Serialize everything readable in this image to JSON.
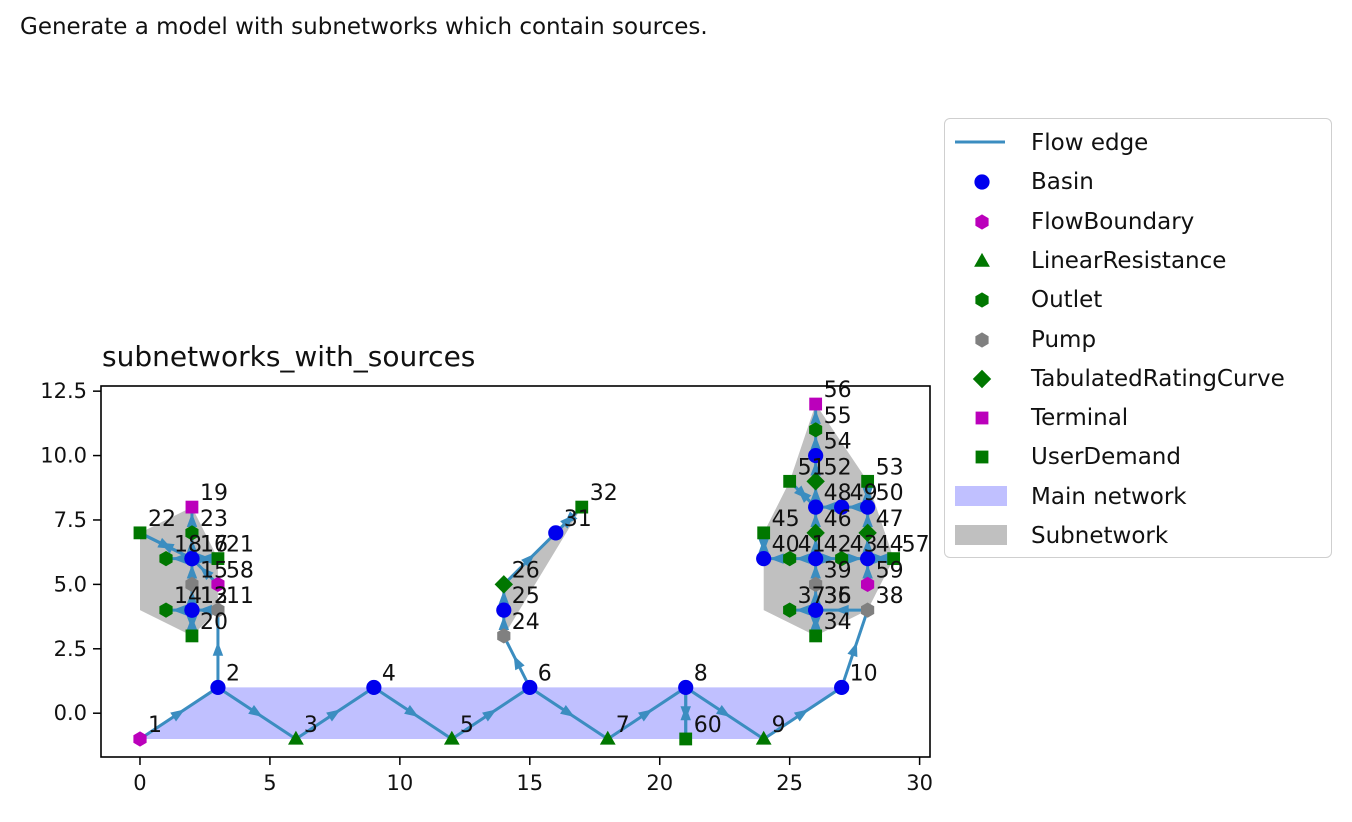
{
  "caption": "Generate a model with subnetworks which contain sources.",
  "chart_data": {
    "type": "scatter",
    "title": "subnetworks_with_sources",
    "xlabel": "",
    "ylabel": "",
    "xlim": [
      -1.5,
      30.4
    ],
    "ylim": [
      -1.7,
      12.7
    ],
    "xticks": [
      0,
      5,
      10,
      15,
      20,
      25,
      30
    ],
    "yticks": [
      0.0,
      2.5,
      5.0,
      7.5,
      10.0,
      12.5
    ],
    "ytick_labels": [
      "0.0",
      "2.5",
      "5.0",
      "7.5",
      "10.0",
      "12.5"
    ],
    "grid": false,
    "legend_position": "outside-right",
    "colors": {
      "flow_edge": "#3b8dc0",
      "Basin": "#0000ee",
      "FlowBoundary": "#bb00bb",
      "LinearResistance": "#007700",
      "Outlet": "#007700",
      "Pump": "#808080",
      "TabulatedRatingCurve": "#007700",
      "Terminal": "#bb00bb",
      "UserDemand": "#007700",
      "main_network": "#c0c0ff",
      "subnetwork": "#c0c0c0"
    },
    "legend": [
      {
        "label": "Flow edge",
        "kind": "line"
      },
      {
        "label": "Basin",
        "kind": "Basin"
      },
      {
        "label": "FlowBoundary",
        "kind": "FlowBoundary"
      },
      {
        "label": "LinearResistance",
        "kind": "LinearResistance"
      },
      {
        "label": "Outlet",
        "kind": "Outlet"
      },
      {
        "label": "Pump",
        "kind": "Pump"
      },
      {
        "label": "TabulatedRatingCurve",
        "kind": "TabulatedRatingCurve"
      },
      {
        "label": "Terminal",
        "kind": "Terminal"
      },
      {
        "label": "UserDemand",
        "kind": "UserDemand"
      },
      {
        "label": "Main network",
        "kind": "main_network"
      },
      {
        "label": "Subnetwork",
        "kind": "subnetwork"
      }
    ],
    "nodes": [
      {
        "id": "1",
        "x": 0,
        "y": -1,
        "type": "FlowBoundary"
      },
      {
        "id": "2",
        "x": 3,
        "y": 1,
        "type": "Basin"
      },
      {
        "id": "3",
        "x": 6,
        "y": -1,
        "type": "LinearResistance"
      },
      {
        "id": "4",
        "x": 9,
        "y": 1,
        "type": "Basin"
      },
      {
        "id": "5",
        "x": 12,
        "y": -1,
        "type": "LinearResistance"
      },
      {
        "id": "6",
        "x": 15,
        "y": 1,
        "type": "Basin"
      },
      {
        "id": "7",
        "x": 18,
        "y": -1,
        "type": "LinearResistance"
      },
      {
        "id": "8",
        "x": 21,
        "y": 1,
        "type": "Basin"
      },
      {
        "id": "9",
        "x": 24,
        "y": -1,
        "type": "LinearResistance"
      },
      {
        "id": "10",
        "x": 27,
        "y": 1,
        "type": "Basin"
      },
      {
        "id": "11",
        "x": 3,
        "y": 4,
        "type": "Pump"
      },
      {
        "id": "12",
        "x": 2,
        "y": 4,
        "type": "Basin"
      },
      {
        "id": "13",
        "x": 2,
        "y": 4,
        "type": "Basin"
      },
      {
        "id": "14",
        "x": 1,
        "y": 4,
        "type": "Outlet"
      },
      {
        "id": "15",
        "x": 2,
        "y": 5,
        "type": "Pump"
      },
      {
        "id": "16",
        "x": 2,
        "y": 6,
        "type": "Basin"
      },
      {
        "id": "17",
        "x": 2,
        "y": 6,
        "type": "Basin"
      },
      {
        "id": "18",
        "x": 1,
        "y": 6,
        "type": "Outlet"
      },
      {
        "id": "19",
        "x": 2,
        "y": 8,
        "type": "Terminal"
      },
      {
        "id": "20",
        "x": 2,
        "y": 3,
        "type": "UserDemand"
      },
      {
        "id": "21",
        "x": 3,
        "y": 6,
        "type": "UserDemand"
      },
      {
        "id": "22",
        "x": 0,
        "y": 7,
        "type": "UserDemand"
      },
      {
        "id": "23",
        "x": 2,
        "y": 7,
        "type": "Outlet"
      },
      {
        "id": "24",
        "x": 14,
        "y": 3,
        "type": "Pump"
      },
      {
        "id": "25",
        "x": 14,
        "y": 4,
        "type": "Basin"
      },
      {
        "id": "26",
        "x": 14,
        "y": 5,
        "type": "TabulatedRatingCurve"
      },
      {
        "id": "31",
        "x": 16,
        "y": 7,
        "type": "Basin"
      },
      {
        "id": "32",
        "x": 17,
        "y": 8,
        "type": "UserDemand"
      },
      {
        "id": "34",
        "x": 26,
        "y": 3,
        "type": "UserDemand"
      },
      {
        "id": "35",
        "x": 26,
        "y": 4,
        "type": "Basin"
      },
      {
        "id": "36",
        "x": 26,
        "y": 4,
        "type": "Basin"
      },
      {
        "id": "37",
        "x": 25,
        "y": 4,
        "type": "Outlet"
      },
      {
        "id": "38",
        "x": 28,
        "y": 4,
        "type": "Pump"
      },
      {
        "id": "39",
        "x": 26,
        "y": 5,
        "type": "Pump"
      },
      {
        "id": "40",
        "x": 24,
        "y": 6,
        "type": "Basin"
      },
      {
        "id": "41",
        "x": 25,
        "y": 6,
        "type": "Outlet"
      },
      {
        "id": "42",
        "x": 26,
        "y": 6,
        "type": "Basin"
      },
      {
        "id": "43",
        "x": 27,
        "y": 6,
        "type": "Outlet"
      },
      {
        "id": "44",
        "x": 28,
        "y": 6,
        "type": "Basin"
      },
      {
        "id": "45",
        "x": 24,
        "y": 7,
        "type": "UserDemand"
      },
      {
        "id": "46",
        "x": 26,
        "y": 7,
        "type": "TabulatedRatingCurve"
      },
      {
        "id": "47",
        "x": 28,
        "y": 7,
        "type": "TabulatedRatingCurve"
      },
      {
        "id": "48",
        "x": 26,
        "y": 8,
        "type": "Basin"
      },
      {
        "id": "49",
        "x": 27,
        "y": 8,
        "type": "Basin"
      },
      {
        "id": "50",
        "x": 28,
        "y": 8,
        "type": "Basin"
      },
      {
        "id": "51",
        "x": 25,
        "y": 9,
        "type": "UserDemand"
      },
      {
        "id": "52",
        "x": 26,
        "y": 9,
        "type": "TabulatedRatingCurve"
      },
      {
        "id": "53",
        "x": 28,
        "y": 9,
        "type": "UserDemand"
      },
      {
        "id": "54",
        "x": 26,
        "y": 10,
        "type": "Basin"
      },
      {
        "id": "55",
        "x": 26,
        "y": 11,
        "type": "Outlet"
      },
      {
        "id": "56",
        "x": 26,
        "y": 12,
        "type": "Terminal"
      },
      {
        "id": "57",
        "x": 29,
        "y": 6,
        "type": "UserDemand"
      },
      {
        "id": "58",
        "x": 3,
        "y": 5,
        "type": "FlowBoundary"
      },
      {
        "id": "59",
        "x": 28,
        "y": 5,
        "type": "FlowBoundary"
      },
      {
        "id": "60",
        "x": 21,
        "y": -1,
        "type": "UserDemand"
      }
    ],
    "edges": [
      [
        "1",
        "2"
      ],
      [
        "2",
        "3"
      ],
      [
        "3",
        "4"
      ],
      [
        "4",
        "5"
      ],
      [
        "5",
        "6"
      ],
      [
        "6",
        "7"
      ],
      [
        "7",
        "8"
      ],
      [
        "8",
        "9"
      ],
      [
        "9",
        "10"
      ],
      [
        "2",
        "11"
      ],
      [
        "11",
        "12"
      ],
      [
        "12",
        "13"
      ],
      [
        "13",
        "14"
      ],
      [
        "12",
        "15"
      ],
      [
        "15",
        "16"
      ],
      [
        "16",
        "17"
      ],
      [
        "17",
        "18"
      ],
      [
        "16",
        "23"
      ],
      [
        "23",
        "19"
      ],
      [
        "12",
        "20"
      ],
      [
        "20",
        "12"
      ],
      [
        "16",
        "21"
      ],
      [
        "21",
        "16"
      ],
      [
        "22",
        "17"
      ],
      [
        "17",
        "22"
      ],
      [
        "58",
        "16"
      ],
      [
        "6",
        "24"
      ],
      [
        "24",
        "25"
      ],
      [
        "25",
        "26"
      ],
      [
        "26",
        "31"
      ],
      [
        "31",
        "32"
      ],
      [
        "32",
        "31"
      ],
      [
        "10",
        "38"
      ],
      [
        "38",
        "35"
      ],
      [
        "35",
        "36"
      ],
      [
        "36",
        "37"
      ],
      [
        "35",
        "39"
      ],
      [
        "39",
        "42"
      ],
      [
        "42",
        "41"
      ],
      [
        "41",
        "40"
      ],
      [
        "42",
        "43"
      ],
      [
        "43",
        "44"
      ],
      [
        "44",
        "47"
      ],
      [
        "47",
        "50"
      ],
      [
        "50",
        "49"
      ],
      [
        "49",
        "48"
      ],
      [
        "48",
        "52"
      ],
      [
        "52",
        "54"
      ],
      [
        "54",
        "55"
      ],
      [
        "55",
        "56"
      ],
      [
        "42",
        "46"
      ],
      [
        "46",
        "48"
      ],
      [
        "35",
        "34"
      ],
      [
        "34",
        "35"
      ],
      [
        "40",
        "45"
      ],
      [
        "45",
        "40"
      ],
      [
        "48",
        "51"
      ],
      [
        "51",
        "48"
      ],
      [
        "50",
        "53"
      ],
      [
        "53",
        "50"
      ],
      [
        "44",
        "57"
      ],
      [
        "57",
        "44"
      ],
      [
        "59",
        "44"
      ],
      [
        "8",
        "60"
      ],
      [
        "60",
        "8"
      ]
    ],
    "main_network_polygon": [
      [
        0,
        -1
      ],
      [
        24,
        -1
      ],
      [
        27,
        1
      ],
      [
        3,
        1
      ]
    ],
    "subnetwork_polygons": [
      [
        [
          0,
          6
        ],
        [
          0,
          4
        ],
        [
          2,
          3
        ],
        [
          3,
          4
        ],
        [
          3,
          6
        ],
        [
          2,
          8
        ],
        [
          0,
          7
        ]
      ],
      [
        [
          14,
          3
        ],
        [
          17,
          8
        ],
        [
          16,
          7
        ],
        [
          14,
          5
        ]
      ],
      [
        [
          24,
          4
        ],
        [
          26,
          3
        ],
        [
          28,
          4
        ],
        [
          29,
          6
        ],
        [
          28,
          9
        ],
        [
          26,
          12
        ],
        [
          25,
          9
        ],
        [
          24,
          7
        ]
      ]
    ],
    "node_labels": [
      "1",
      "2",
      "3",
      "4",
      "5",
      "6",
      "7",
      "8",
      "9",
      "10",
      "11",
      "12",
      "13",
      "14",
      "15",
      "16",
      "17",
      "18",
      "19",
      "20",
      "21",
      "22",
      "23",
      "24",
      "25",
      "26",
      "31",
      "32",
      "34",
      "35",
      "36",
      "37",
      "38",
      "39",
      "40",
      "41",
      "42",
      "43",
      "44",
      "45",
      "46",
      "47",
      "48",
      "49",
      "50",
      "51",
      "52",
      "53",
      "54",
      "55",
      "56",
      "57",
      "58",
      "59",
      "60"
    ]
  }
}
